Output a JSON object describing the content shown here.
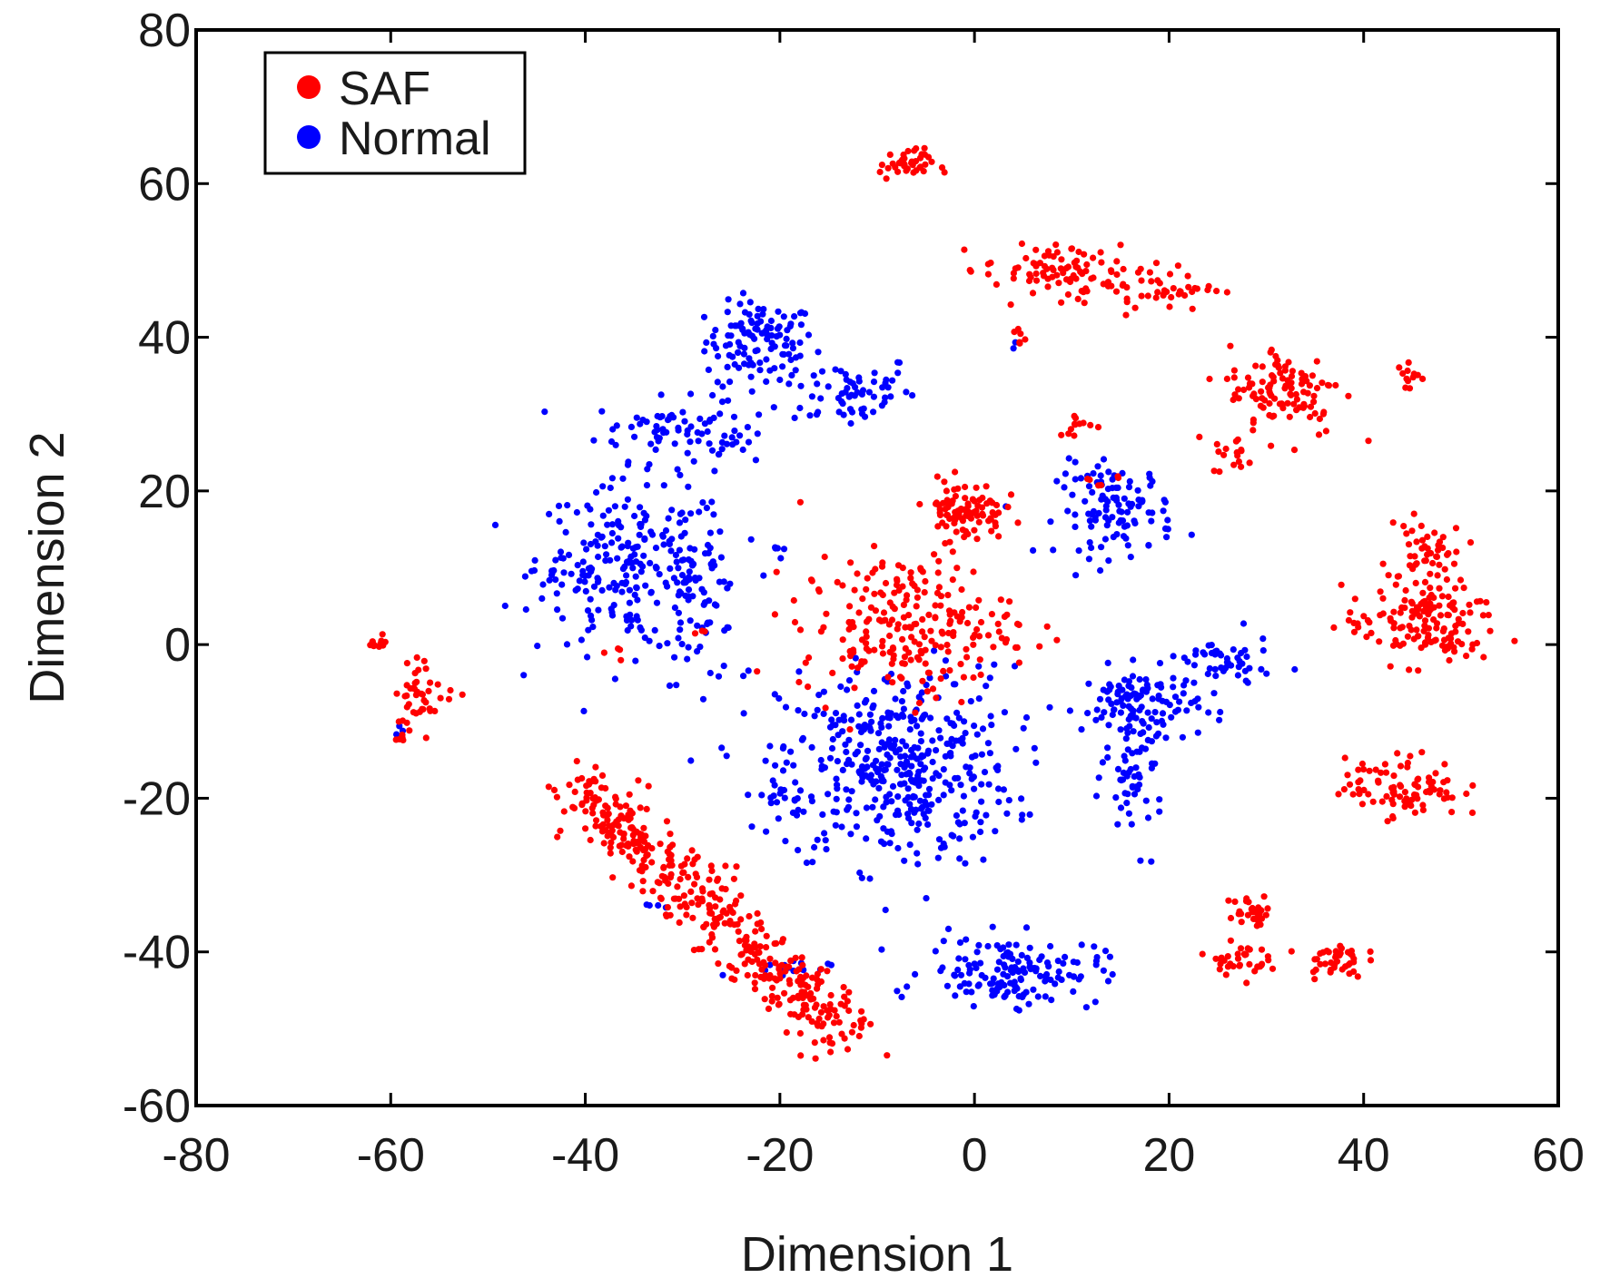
{
  "chart_data": {
    "type": "scatter",
    "title": "",
    "xlabel": "Dimension 1",
    "ylabel": "Dimension 2",
    "xlim": [
      -80,
      60
    ],
    "ylim": [
      -60,
      80
    ],
    "xticks": [
      -80,
      -60,
      -40,
      -20,
      0,
      20,
      40,
      60
    ],
    "yticks": [
      80,
      60,
      40,
      20,
      0,
      -20,
      -40,
      -60
    ],
    "xtick_labels": [
      "-80",
      "-60",
      "-40",
      "-20",
      "0",
      "20",
      "40",
      "60"
    ],
    "ytick_labels": [
      "80",
      "60",
      "40",
      "20",
      "0",
      "-20",
      "-40",
      "-60"
    ],
    "grid": false,
    "legend_position": "top-left",
    "series": [
      {
        "name": "SAF",
        "color": "#ff0000",
        "clusters": [
          {
            "cx": -7,
            "cy": 62.5,
            "sx": 1.4,
            "sy": 1.0,
            "n": 40
          },
          {
            "cx": 8,
            "cy": 49,
            "sx": 3.5,
            "sy": 1.5,
            "n": 70
          },
          {
            "cx": 17,
            "cy": 46.5,
            "sx": 4.0,
            "sy": 1.5,
            "n": 60
          },
          {
            "cx": 4.5,
            "cy": 40,
            "sx": 0.4,
            "sy": 0.8,
            "n": 6
          },
          {
            "cx": 32,
            "cy": 33,
            "sx": 3.0,
            "sy": 3.0,
            "n": 110
          },
          {
            "cx": 26.5,
            "cy": 24.5,
            "sx": 1.0,
            "sy": 1.2,
            "n": 15
          },
          {
            "cx": 44.5,
            "cy": 35,
            "sx": 1.0,
            "sy": 1.0,
            "n": 12
          },
          {
            "cx": 11,
            "cy": 28.5,
            "sx": 1.2,
            "sy": 0.8,
            "n": 12
          },
          {
            "cx": -1,
            "cy": 17.5,
            "sx": 2.0,
            "sy": 2.0,
            "n": 90
          },
          {
            "cx": -7,
            "cy": 2.5,
            "sx": 5.5,
            "sy": 4.5,
            "n": 230
          },
          {
            "cx": 46,
            "cy": 10,
            "sx": 2.0,
            "sy": 4.5,
            "n": 70
          },
          {
            "cx": 46,
            "cy": 2.5,
            "sx": 4.0,
            "sy": 2.5,
            "n": 120
          },
          {
            "cx": 44,
            "cy": -18.5,
            "sx": 3.0,
            "sy": 2.0,
            "n": 90
          },
          {
            "cx": -61.5,
            "cy": 0,
            "sx": 0.6,
            "sy": 0.8,
            "n": 12
          },
          {
            "cx": -56.5,
            "cy": -6,
            "sx": 1.5,
            "sy": 2.0,
            "n": 40
          },
          {
            "cx": -58.5,
            "cy": -11,
            "sx": 0.6,
            "sy": 0.8,
            "n": 8
          },
          {
            "cx": 28.5,
            "cy": -35,
            "sx": 1.2,
            "sy": 1.2,
            "n": 30
          },
          {
            "cx": 27,
            "cy": -41,
            "sx": 1.5,
            "sy": 1.0,
            "n": 35
          },
          {
            "cx": 37,
            "cy": -41,
            "sx": 1.5,
            "sy": 1.2,
            "n": 40
          },
          {
            "cx": 13,
            "cy": 21.5,
            "sx": 1.2,
            "sy": 0.4,
            "n": 6
          },
          {
            "cx": -38,
            "cy": -1,
            "sx": 1.0,
            "sy": 0.8,
            "n": 4
          },
          {
            "cx": -28,
            "cy": 2,
            "sx": 0.5,
            "sy": 0.5,
            "n": 3
          },
          {
            "line": [
              [
                -41,
                -18
              ],
              [
                -13,
                -51
              ]
            ],
            "spread": 2.0,
            "n": 420
          }
        ]
      },
      {
        "name": "Normal",
        "color": "#0000ff",
        "clusters": [
          {
            "cx": -22,
            "cy": 39.5,
            "sx": 2.8,
            "sy": 2.5,
            "n": 110
          },
          {
            "cx": -13,
            "cy": 33,
            "sx": 3.5,
            "sy": 2.5,
            "n": 65
          },
          {
            "cx": -32,
            "cy": 28,
            "sx": 3.5,
            "sy": 2.0,
            "n": 55
          },
          {
            "cx": -25.5,
            "cy": 29,
            "sx": 2.0,
            "sy": 3.0,
            "n": 30
          },
          {
            "cx": -35,
            "cy": 10,
            "sx": 5.0,
            "sy": 5.5,
            "n": 230
          },
          {
            "cx": -28,
            "cy": 5,
            "sx": 2.0,
            "sy": 5.0,
            "n": 55
          },
          {
            "cx": -42,
            "cy": 9.5,
            "sx": 2.0,
            "sy": 1.0,
            "n": 18
          },
          {
            "cx": -20.5,
            "cy": 12,
            "sx": 0.4,
            "sy": 1.0,
            "n": 5
          },
          {
            "cx": -8,
            "cy": -16,
            "sx": 6.0,
            "sy": 6.5,
            "n": 420
          },
          {
            "cx": -19,
            "cy": -19.5,
            "sx": 2.5,
            "sy": 1.0,
            "n": 20
          },
          {
            "cx": 14.5,
            "cy": 17.5,
            "sx": 3.0,
            "sy": 3.0,
            "n": 110
          },
          {
            "cx": 17,
            "cy": -8,
            "sx": 3.0,
            "sy": 2.5,
            "n": 110
          },
          {
            "cx": 16.5,
            "cy": -17,
            "sx": 1.5,
            "sy": 4.5,
            "n": 55
          },
          {
            "cx": 25.5,
            "cy": -2.5,
            "sx": 2.5,
            "sy": 1.8,
            "n": 50
          },
          {
            "cx": 4,
            "cy": -42.5,
            "sx": 4.5,
            "sy": 2.2,
            "n": 150
          },
          {
            "cx": -20,
            "cy": -43,
            "sx": 2.5,
            "sy": 1.2,
            "n": 15
          },
          {
            "cx": -59,
            "cy": -11,
            "sx": 0.5,
            "sy": 0.4,
            "n": 3
          },
          {
            "cx": 4,
            "cy": 39,
            "sx": 0.3,
            "sy": 0.3,
            "n": 2
          },
          {
            "cx": -34,
            "cy": -34,
            "sx": 0.8,
            "sy": 0.8,
            "n": 4
          }
        ]
      }
    ]
  }
}
